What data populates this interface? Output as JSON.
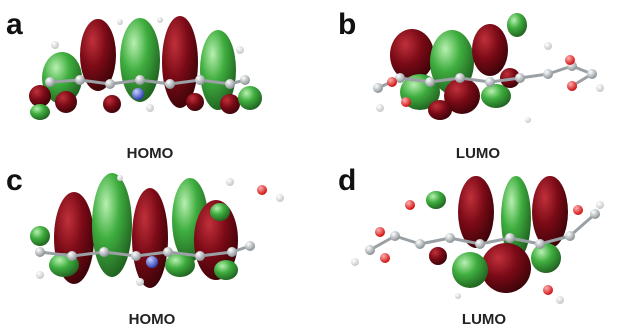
{
  "panels": [
    {
      "label": "a",
      "caption": "HOMO"
    },
    {
      "label": "b",
      "caption": "LUMO"
    },
    {
      "label": "c",
      "caption": "HOMO"
    },
    {
      "label": "d",
      "caption": "LUMO"
    }
  ]
}
